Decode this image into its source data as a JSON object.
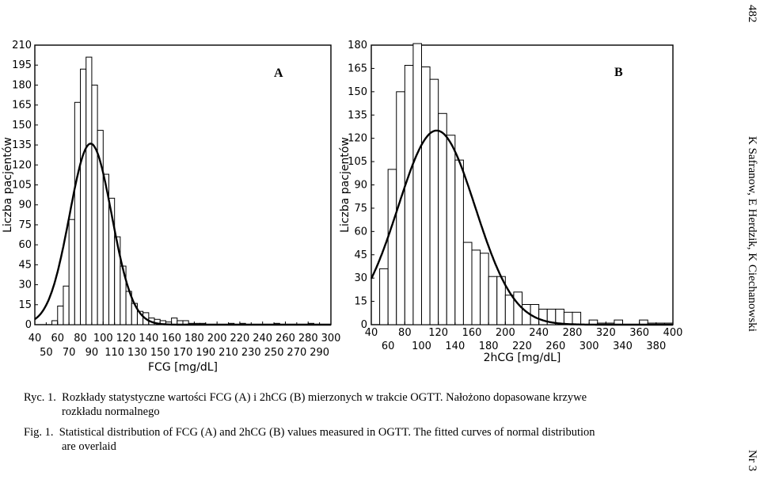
{
  "page": {
    "page_number": "482",
    "running_head": "K Safranow, E Herdzik, K Ciechanowski",
    "issue": "Nr 3"
  },
  "caption": {
    "pl_label": "Ryc. 1.",
    "pl_text": "Rozkłady statystyczne wartości FCG (A) i 2hCG (B) mierzonych w trakcie OGTT. Nałożono dopasowane krzywe",
    "pl_text_cont": "rozkładu normalnego",
    "en_label": "Fig. 1.",
    "en_text": "Statistical distribution of FCG (A) and 2hCG (B) values measured in OGTT. The fitted curves of normal distribution",
    "en_text_cont": "are overlaid"
  },
  "chart_data": [
    {
      "type": "bar",
      "panel": "A",
      "xlabel": "FCG [mg/dL]",
      "ylabel": "Liczba pacjentów",
      "xlim": [
        40,
        300
      ],
      "ylim": [
        0,
        210
      ],
      "bin_width": 5,
      "x_ticks_top": [
        "40",
        "60",
        "80",
        "100",
        "120",
        "140",
        "160",
        "180",
        "200",
        "220",
        "240",
        "260",
        "280",
        "300"
      ],
      "x_ticks_bottom": [
        "50",
        "70",
        "90",
        "110",
        "130",
        "150",
        "170",
        "190",
        "210",
        "230",
        "250",
        "270",
        "290"
      ],
      "y_ticks": [
        "0",
        "15",
        "30",
        "45",
        "60",
        "75",
        "90",
        "105",
        "120",
        "135",
        "150",
        "165",
        "180",
        "195",
        "210"
      ],
      "bin_starts": [
        55,
        60,
        65,
        70,
        75,
        80,
        85,
        90,
        95,
        100,
        105,
        110,
        115,
        120,
        125,
        130,
        135,
        140,
        145,
        150,
        155,
        160,
        165,
        170,
        175,
        180,
        185,
        190,
        195,
        200,
        205,
        210,
        215,
        220,
        225,
        230,
        235,
        240,
        245,
        250,
        255,
        260,
        265,
        270,
        275,
        280,
        285,
        290
      ],
      "values": [
        3,
        14,
        29,
        79,
        167,
        192,
        201,
        180,
        146,
        113,
        95,
        66,
        44,
        25,
        16,
        10,
        9,
        5,
        4,
        3,
        2,
        5,
        3,
        3,
        1,
        1,
        1,
        0,
        0,
        0,
        0,
        1,
        0,
        1,
        0,
        0,
        0,
        0,
        0,
        1,
        0,
        0,
        0,
        0,
        0,
        1,
        0,
        0
      ],
      "fitted_curve": {
        "mean": 89,
        "sd": 18.5,
        "peak": 136
      }
    },
    {
      "type": "bar",
      "panel": "B",
      "xlabel": "2hCG [mg/dL]",
      "ylabel": "Liczba pacjentów",
      "xlim": [
        40,
        400
      ],
      "ylim": [
        0,
        180
      ],
      "bin_width": 10,
      "x_ticks_top": [
        "40",
        "80",
        "120",
        "160",
        "200",
        "240",
        "280",
        "320",
        "360",
        "400"
      ],
      "x_ticks_bottom": [
        "60",
        "100",
        "140",
        "180",
        "220",
        "260",
        "300",
        "340",
        "380"
      ],
      "y_ticks": [
        "0",
        "15",
        "30",
        "45",
        "60",
        "75",
        "90",
        "105",
        "120",
        "135",
        "150",
        "165",
        "180"
      ],
      "bin_starts": [
        50,
        60,
        70,
        80,
        90,
        100,
        110,
        120,
        130,
        140,
        150,
        160,
        170,
        180,
        190,
        200,
        210,
        220,
        230,
        240,
        250,
        260,
        270,
        280,
        290,
        300,
        310,
        320,
        330,
        340,
        350,
        360,
        370,
        380,
        390
      ],
      "values": [
        36,
        100,
        150,
        167,
        181,
        166,
        158,
        136,
        122,
        106,
        53,
        48,
        46,
        31,
        31,
        19,
        21,
        13,
        13,
        10,
        10,
        10,
        8,
        8,
        0,
        3,
        1,
        1,
        3,
        0,
        0,
        3,
        1,
        1,
        1
      ],
      "fitted_curve": {
        "mean": 118,
        "sd": 46,
        "peak": 125
      }
    }
  ]
}
